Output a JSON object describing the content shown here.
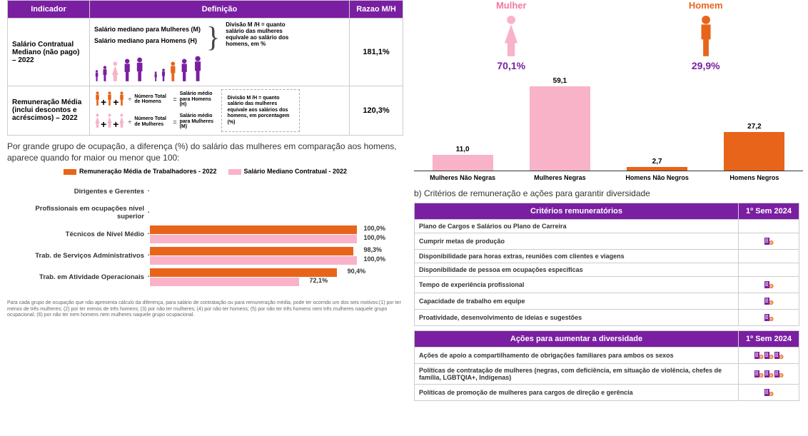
{
  "palette": {
    "purple": "#7a1fa2",
    "orange": "#e8641b",
    "pink": "#f9b3c9",
    "darkpurple": "#5a1680",
    "grey": "#cccccc",
    "text": "#333333"
  },
  "indicator_table": {
    "headers": {
      "ind": "Indicador",
      "def": "Definição",
      "raz": "Razao M/H"
    },
    "rows": [
      {
        "indicator": "Salário Contratual Mediano (não pago) – 2022",
        "ratio": "181,1%",
        "def_women": "Salário mediano para Mulheres (M)",
        "def_men": "Salário mediano para Homens (H)",
        "def_eq": "Divisão M /H = quanto salário das mulheres equivale ao salário dos homens, em %",
        "people_colors_heights": [
          [
            "#7a1fa2",
            16
          ],
          [
            "#7a1fa2",
            22
          ],
          [
            "#f9b3c9",
            28
          ],
          [
            "#7a1fa2",
            32
          ],
          [
            "#7a1fa2",
            34
          ],
          [
            "#7a1fa2",
            14
          ],
          [
            "#7a1fa2",
            18
          ],
          [
            "#e8641b",
            28
          ],
          [
            "#7a1fa2",
            32
          ],
          [
            "#7a1fa2",
            36
          ]
        ]
      },
      {
        "indicator": "Remuneração Média (inclui descontos e acréscimos) – 2022",
        "ratio": "120,3%",
        "men_calc_lhs": "Número Total de Homens",
        "men_calc_rhs": "Salário médio para Homens (H)",
        "women_calc_lhs": "Número Total de Mulheres",
        "women_calc_rhs": "Salário médio para Mulheres (M)",
        "box_text": "Divisão M /H = quanto salário das mulheres equivale aos salários dos homens, em porcentagem (%)"
      }
    ]
  },
  "caption1": "Por grande grupo de ocupação, a diferença (%) do salário das mulheres em comparação aos homens, aparece quando for maior ou menor que 100:",
  "legend": {
    "a": {
      "color": "#e8641b",
      "label": "Remuneração Média de Trabalhadores - 2022"
    },
    "b": {
      "color": "#f9b3c9",
      "label": "Salário Mediano Contratual - 2022"
    }
  },
  "hbar_chart": {
    "xmax": 100,
    "rows": [
      {
        "label": "Dirigentes e Gerentes",
        "a": null,
        "b": null
      },
      {
        "label": "Profissionais em ocupações nível superior",
        "a": null,
        "b": null
      },
      {
        "label": "Técnicos de Nível Médio",
        "a": 100.0,
        "b": 100.0,
        "a_label": "100,0%",
        "b_label": "100,0%"
      },
      {
        "label": "Trab. de Serviços Administrativos",
        "a": 98.3,
        "b": 100.0,
        "a_label": "98,3%",
        "b_label": "100,0%"
      },
      {
        "label": "Trab. em Atividade Operacionais",
        "a": 90.4,
        "b": 72.1,
        "a_label": "90,4%",
        "b_label": "72,1%"
      }
    ]
  },
  "footnote": "Para cada grupo de ocupação que não apresenta cálculo da diferença, para salário de contratação ou para remuneração média, pode ter ocorrido um dos seis motivos:(1) por ter menos de três mulheres; (2) por ter menos de três homens; (3) por não ter mulheres; (4) por não ter homens; (5) por não ter três homens nem três mulheres naquele grupo ocupacional; (6) por não ter nem homens nem mulheres naquele grupo ocupacional.",
  "gender_chart": {
    "mulher": {
      "title": "Mulher",
      "figure_color": "#f9b3c9",
      "pct": "70,1%"
    },
    "homem": {
      "title": "Homem",
      "figure_color": "#e8641b",
      "pct": "29,9%"
    },
    "ymax": 60,
    "bars": [
      {
        "cat": "Mulheres Não Negras",
        "val": 11.0,
        "val_label": "11,0",
        "color": "#f9b3c9"
      },
      {
        "cat": "Mulheres Negras",
        "val": 59.1,
        "val_label": "59,1",
        "color": "#f9b3c9"
      },
      {
        "cat": "Homens Não Negros",
        "val": 2.7,
        "val_label": "2,7",
        "color": "#e8641b"
      },
      {
        "cat": "Homens Negros",
        "val": 27.2,
        "val_label": "27,2",
        "color": "#e8641b"
      }
    ]
  },
  "sectionB": "b) Critérios de remuneração e ações para garantir diversidade",
  "crit_table": {
    "hdr_crit": "Critérios remuneratórios",
    "hdr_sem": "1º Sem 2024",
    "rows": [
      {
        "text": "Plano de Cargos e Salários ou Plano de Carreira",
        "icons": 0
      },
      {
        "text": "Cumprir metas de produção",
        "icons": 1
      },
      {
        "text": "Disponibilidade para horas extras, reuniões com clientes e viagens",
        "icons": 0
      },
      {
        "text": "Disponibilidade de pessoa em ocupações específicas",
        "icons": 0
      },
      {
        "text": "Tempo de experiência profissional",
        "icons": 1
      },
      {
        "text": "Capacidade de trabalho em equipe",
        "icons": 1
      },
      {
        "text": "Proatividade, desenvolvimento de ideias e sugestões",
        "icons": 1
      }
    ]
  },
  "div_table": {
    "hdr_crit": "Ações para aumentar a diversidade",
    "hdr_sem": "1º Sem 2024",
    "rows": [
      {
        "text": "Ações de apoio a compartilhamento de obrigações familiares para ambos os sexos",
        "icons": 3
      },
      {
        "text": "Políticas de contratação de mulheres (negras, com deficiência, em situação de violência, chefes de família, LGBTQIA+, Indígenas)",
        "icons": 3
      },
      {
        "text": "Políticas de promoção de mulheres para cargos de direção e gerência",
        "icons": 1
      }
    ]
  }
}
